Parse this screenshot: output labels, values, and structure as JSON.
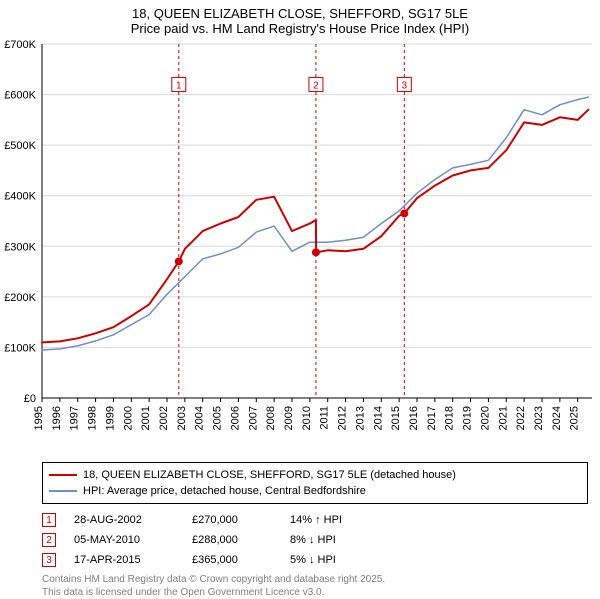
{
  "title": {
    "line1": "18, QUEEN ELIZABETH CLOSE, SHEFFORD, SG17 5LE",
    "line2": "Price paid vs. HM Land Registry's House Price Index (HPI)"
  },
  "chart": {
    "type": "line",
    "background_color": "#ffffff",
    "grid_color": "#d9d9d9",
    "axis_color": "#000000",
    "tick_fontsize": 11,
    "xlim": [
      1995,
      2025.8
    ],
    "ylim": [
      0,
      700000
    ],
    "ytick_step": 100000,
    "ytick_labels": [
      "£0",
      "£100K",
      "£200K",
      "£300K",
      "£400K",
      "£500K",
      "£600K",
      "£700K"
    ],
    "xticks": [
      1995,
      1996,
      1997,
      1998,
      1999,
      2000,
      2001,
      2002,
      2003,
      2004,
      2005,
      2006,
      2007,
      2008,
      2009,
      2010,
      2011,
      2012,
      2013,
      2014,
      2015,
      2016,
      2017,
      2018,
      2019,
      2020,
      2021,
      2022,
      2023,
      2024,
      2025
    ],
    "series": [
      {
        "name": "price_paid",
        "label": "18, QUEEN ELIZABETH CLOSE, SHEFFORD, SG17 5LE (detached house)",
        "color": "#cc0000",
        "line_width": 2,
        "x": [
          1995,
          1996,
          1997,
          1998,
          1999,
          2000,
          2001,
          2002,
          2002.66,
          2003,
          2004,
          2005,
          2006,
          2007,
          2008,
          2009,
          2010,
          2010.34,
          2010.35,
          2011,
          2012,
          2013,
          2014,
          2015,
          2015.29,
          2016,
          2017,
          2018,
          2019,
          2020,
          2021,
          2022,
          2023,
          2024,
          2025,
          2025.6
        ],
        "y": [
          110000,
          112000,
          118000,
          128000,
          140000,
          162000,
          185000,
          235000,
          270000,
          295000,
          330000,
          345000,
          358000,
          392000,
          398000,
          330000,
          345000,
          352000,
          288000,
          292000,
          290000,
          295000,
          320000,
          360000,
          365000,
          395000,
          420000,
          440000,
          450000,
          455000,
          490000,
          545000,
          540000,
          555000,
          550000,
          570000
        ]
      },
      {
        "name": "hpi",
        "label": "HPI: Average price, detached house, Central Bedfordshire",
        "color": "#6f8fc7",
        "line_width": 1.5,
        "x": [
          1995,
          1996,
          1997,
          1998,
          1999,
          2000,
          2001,
          2002,
          2003,
          2004,
          2005,
          2006,
          2007,
          2008,
          2009,
          2010,
          2011,
          2012,
          2013,
          2014,
          2015,
          2016,
          2017,
          2018,
          2019,
          2020,
          2021,
          2022,
          2023,
          2024,
          2025,
          2025.6
        ],
        "y": [
          95000,
          97000,
          103000,
          113000,
          125000,
          145000,
          165000,
          205000,
          240000,
          275000,
          285000,
          298000,
          328000,
          340000,
          290000,
          308000,
          308000,
          312000,
          318000,
          345000,
          370000,
          405000,
          432000,
          455000,
          462000,
          470000,
          515000,
          570000,
          560000,
          580000,
          590000,
          595000
        ]
      }
    ],
    "event_markers": [
      {
        "n": "1",
        "x": 2002.66,
        "y": 270000,
        "box_y": 620000,
        "color": "#cc0000"
      },
      {
        "n": "2",
        "x": 2010.34,
        "y": 288000,
        "box_y": 620000,
        "color": "#cc0000"
      },
      {
        "n": "3",
        "x": 2015.29,
        "y": 365000,
        "box_y": 620000,
        "color": "#cc0000"
      }
    ],
    "marker_box": {
      "size": 14,
      "fontsize": 10,
      "fill": "#ffffff"
    },
    "marker_point": {
      "radius": 4,
      "fill": "#cc0000"
    }
  },
  "legend": {
    "items": [
      {
        "color": "#cc0000",
        "width": 2,
        "label": "18, QUEEN ELIZABETH CLOSE, SHEFFORD, SG17 5LE (detached house)"
      },
      {
        "color": "#6f8fc7",
        "width": 1.5,
        "label": "HPI: Average price, detached house, Central Bedfordshire"
      }
    ]
  },
  "events_table": {
    "rows": [
      {
        "marker": "1",
        "marker_color": "#cc0000",
        "date": "28-AUG-2002",
        "price": "£270,000",
        "note": "14% ↑ HPI"
      },
      {
        "marker": "2",
        "marker_color": "#cc0000",
        "date": "05-MAY-2010",
        "price": "£288,000",
        "note": "8% ↓ HPI"
      },
      {
        "marker": "3",
        "marker_color": "#cc0000",
        "date": "17-APR-2015",
        "price": "£365,000",
        "note": "5% ↓ HPI"
      }
    ]
  },
  "footer": {
    "line1": "Contains HM Land Registry data © Crown copyright and database right 2025.",
    "line2": "This data is licensed under the Open Government Licence v3.0."
  }
}
